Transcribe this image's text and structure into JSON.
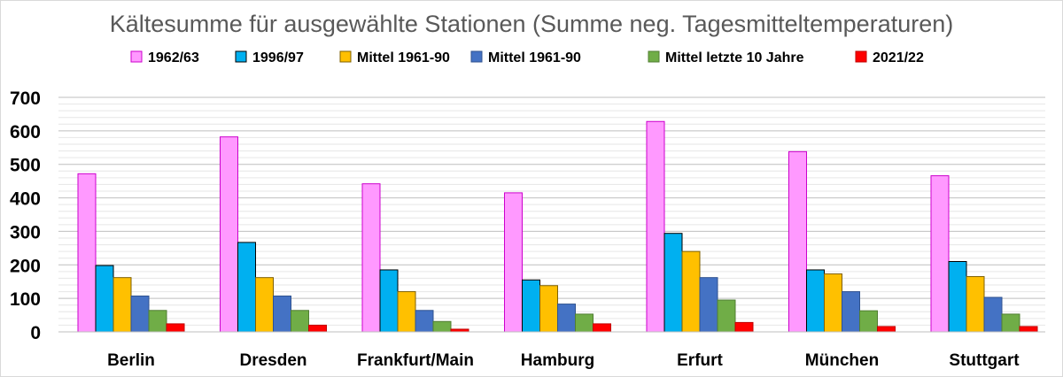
{
  "chart_data": {
    "type": "bar",
    "title": "Kältesumme für ausgewählte Stationen (Summe neg. Tagesmitteltemperaturen)",
    "xlabel": "",
    "ylabel": "",
    "ylim": [
      0,
      700
    ],
    "yticks": [
      0,
      100,
      200,
      300,
      400,
      500,
      600,
      700
    ],
    "grid": true,
    "legend_position": "top",
    "categories": [
      "Berlin",
      "Dresden",
      "Frankfurt/Main",
      "Hamburg",
      "Erfurt",
      "München",
      "Stuttgart"
    ],
    "series": [
      {
        "name": "1962/63",
        "color": "#FF99FF",
        "stroke": "#CC00CC",
        "values": [
          472,
          582,
          442,
          415,
          628,
          538,
          466
        ]
      },
      {
        "name": "1996/97",
        "color": "#00B0F0",
        "stroke": "#000000",
        "values": [
          198,
          267,
          185,
          155,
          294,
          185,
          210
        ]
      },
      {
        "name": "Mittel 1961-90",
        "color": "#FFC000",
        "stroke": "#7F6000",
        "values": [
          162,
          162,
          120,
          138,
          240,
          173,
          165
        ]
      },
      {
        "name": "Mittel 1961-90",
        "color": "#4472C4",
        "stroke": "#2F528F",
        "values": [
          107,
          107,
          64,
          83,
          162,
          120,
          103
        ]
      },
      {
        "name": "Mittel  letzte 10 Jahre",
        "color": "#70AD47",
        "stroke": "#507E32",
        "values": [
          64,
          64,
          31,
          53,
          95,
          63,
          53
        ]
      },
      {
        "name": "2021/22",
        "color": "#FF0000",
        "stroke": "#C00000",
        "values": [
          24,
          20,
          8,
          24,
          28,
          16,
          16
        ]
      }
    ]
  }
}
